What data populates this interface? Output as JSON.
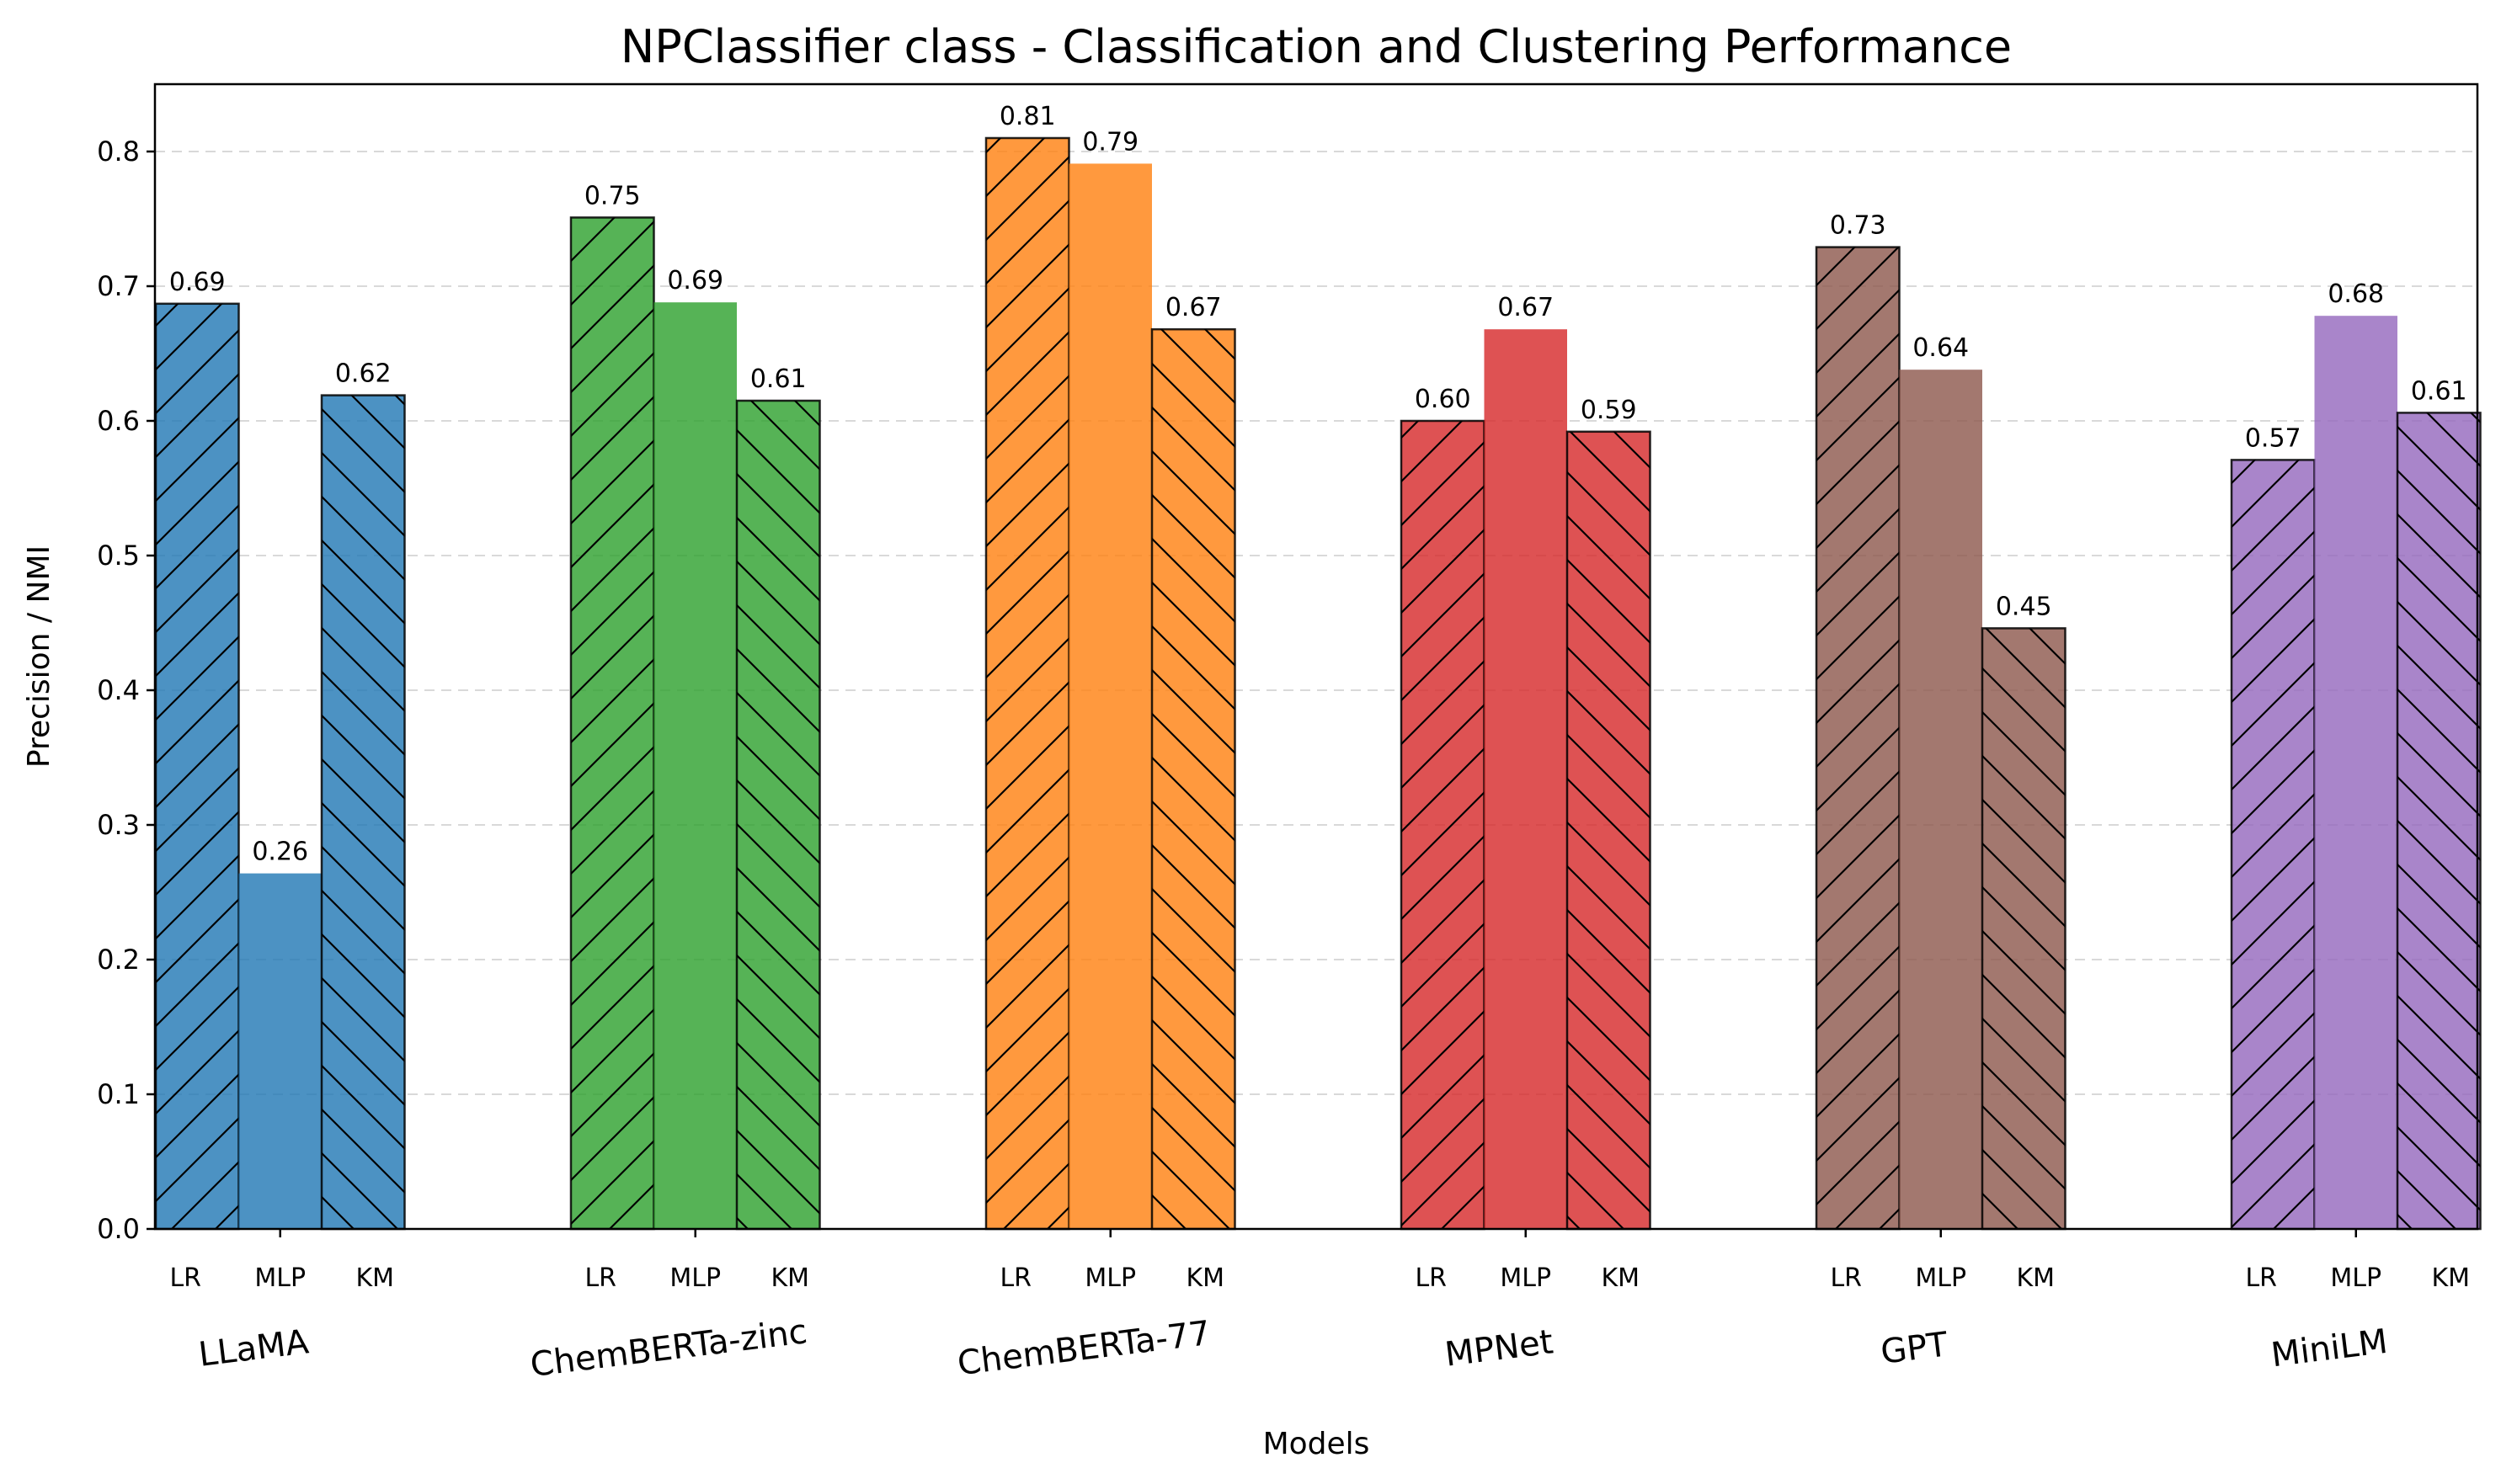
{
  "chart_data": {
    "type": "bar",
    "title": "NPClassifier class - Classification and Clustering Performance",
    "xlabel": "Models",
    "ylabel": "Precision / NMI",
    "ylim": [
      0,
      0.85
    ],
    "yticks": [
      0.0,
      0.1,
      0.2,
      0.3,
      0.4,
      0.5,
      0.6,
      0.7,
      0.8
    ],
    "ytick_labels": [
      "0.0",
      "0.1",
      "0.2",
      "0.3",
      "0.4",
      "0.5",
      "0.6",
      "0.7",
      "0.8"
    ],
    "grid": "horizontal dashed",
    "methods": [
      "LR",
      "MLP",
      "KM"
    ],
    "method_hatch": [
      "forward-diagonal",
      "none",
      "back-diagonal"
    ],
    "groups": [
      {
        "model": "LLaMA",
        "color": "#1f77b4",
        "values": [
          0.687,
          0.264,
          0.619
        ],
        "labels": [
          "0.69",
          "0.26",
          "0.62"
        ]
      },
      {
        "model": "ChemBERTa-zinc",
        "color": "#2ca02c",
        "values": [
          0.751,
          0.688,
          0.615
        ],
        "labels": [
          "0.75",
          "0.69",
          "0.61"
        ]
      },
      {
        "model": "ChemBERTa-77",
        "color": "#ff7f0e",
        "values": [
          0.81,
          0.791,
          0.668
        ],
        "labels": [
          "0.81",
          "0.79",
          "0.67"
        ]
      },
      {
        "model": "MPNet",
        "color": "#d62728",
        "values": [
          0.6,
          0.668,
          0.592
        ],
        "labels": [
          "0.60",
          "0.67",
          "0.59"
        ]
      },
      {
        "model": "GPT",
        "color": "#8c564b",
        "values": [
          0.729,
          0.638,
          0.446
        ],
        "labels": [
          "0.73",
          "0.64",
          "0.45"
        ]
      },
      {
        "model": "MiniLM",
        "color": "#9467bd",
        "values": [
          0.571,
          0.678,
          0.606
        ],
        "labels": [
          "0.57",
          "0.68",
          "0.61"
        ]
      }
    ]
  }
}
